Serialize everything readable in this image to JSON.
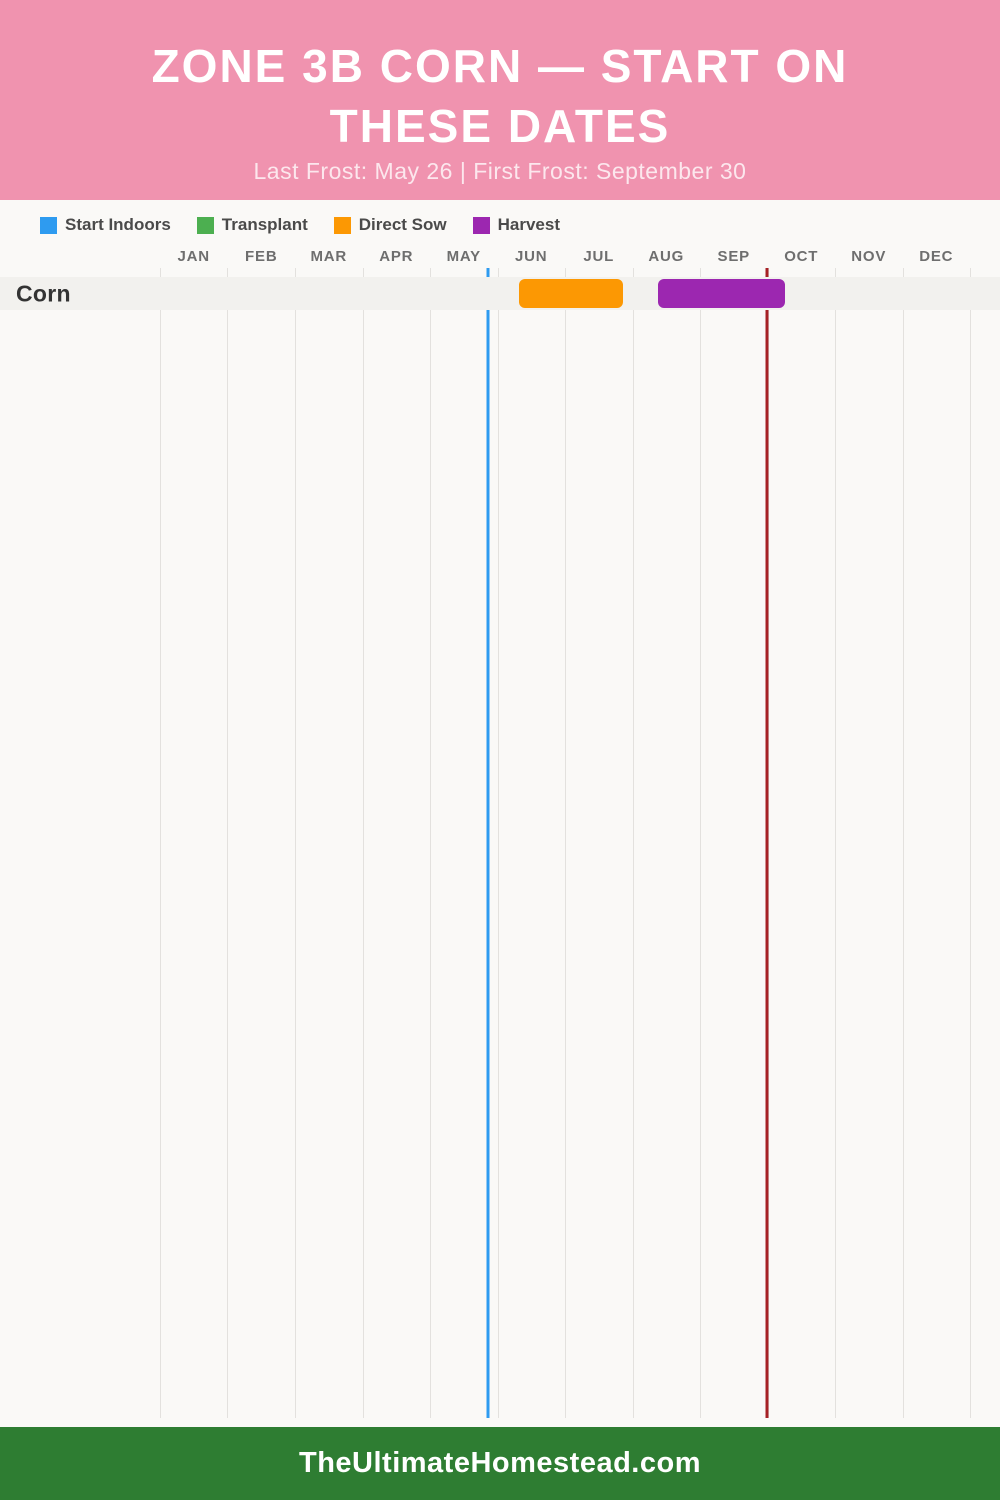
{
  "header": {
    "title": "ZONE 3B CORN — START ON THESE DATES",
    "subtitle": "Last Frost: May 26 | First Frost: September 30",
    "bg_color": "#F093AF"
  },
  "legend": {
    "items": [
      {
        "label": "Start Indoors",
        "color": "#2E9BF0"
      },
      {
        "label": "Transplant",
        "color": "#4CAF50"
      },
      {
        "label": "Direct Sow",
        "color": "#FC9803"
      },
      {
        "label": "Harvest",
        "color": "#9C27B0"
      }
    ]
  },
  "chart_data": {
    "type": "bar",
    "subtype": "gantt-planting-calendar",
    "title": "Zone 3B Corn — Start on These Dates",
    "x_axis": "months",
    "x_range": [
      0,
      12
    ],
    "months": [
      "JAN",
      "FEB",
      "MAR",
      "APR",
      "MAY",
      "JUN",
      "JUL",
      "AUG",
      "SEP",
      "OCT",
      "NOV",
      "DEC"
    ],
    "rows": [
      {
        "label": "Corn",
        "bars": [
          {
            "series": "Direct Sow",
            "color": "#FC9803",
            "start": 5.32,
            "end": 6.86
          },
          {
            "series": "Harvest",
            "color": "#9C27B0",
            "start": 7.38,
            "end": 9.26
          }
        ]
      }
    ],
    "markers": [
      {
        "name": "last-frost",
        "label": "Last Frost: May 26",
        "position": 4.86,
        "color": "#2E9BF0"
      },
      {
        "name": "first-frost",
        "label": "First Frost: September 30",
        "position": 8.99,
        "color": "#A62125"
      }
    ],
    "grid": "vertical-month-lines",
    "legend_position": "top-left"
  },
  "footer": {
    "text": "TheUltimateHomestead.com",
    "bg_color": "#2E7D32"
  }
}
